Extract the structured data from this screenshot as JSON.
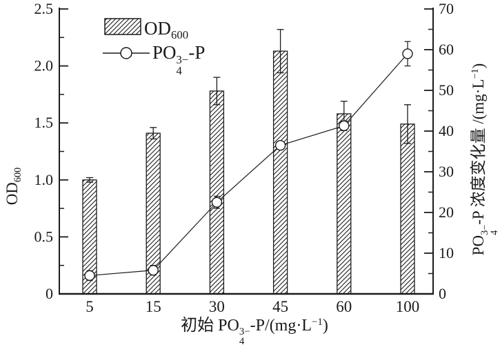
{
  "style": {
    "ink": "#1a1a1a",
    "background": "#ffffff"
  },
  "legend": {
    "entries": [
      {
        "plain": "OD600",
        "swatch": "hatched-bar",
        "parts": [
          {
            "t": "OD"
          },
          {
            "t": "600",
            "style": "sub"
          }
        ]
      },
      {
        "plain": "PO4(3-)-P",
        "swatch": "line-circle-marker",
        "parts": [
          {
            "t": "PO"
          },
          {
            "style": "stack",
            "sup": "3−",
            "sub": "4"
          },
          {
            "t": "-P"
          }
        ]
      }
    ]
  },
  "axes": {
    "left": {
      "title_plain": "OD600",
      "title_parts": [
        {
          "t": "OD"
        },
        {
          "t": "600",
          "style": "sub"
        }
      ],
      "tick_labels": [
        "0",
        "0.5",
        "1.0",
        "1.5",
        "2.0",
        "2.5"
      ]
    },
    "right": {
      "title_plain": "PO4(3-)-P 浓度变化量 /(mg·L-1)",
      "title_parts": [
        {
          "t": "PO"
        },
        {
          "style": "stack",
          "sup": "3−",
          "sub": "4"
        },
        {
          "t": "-P 浓度变化量 /(mg·L"
        },
        {
          "t": "−1",
          "style": "sup"
        },
        {
          "t": ")"
        }
      ],
      "tick_labels": [
        "0",
        "10",
        "20",
        "30",
        "40",
        "50",
        "60",
        "70"
      ]
    },
    "x": {
      "title_plain": "初始 PO4(3-)-P/(mg·L-1)",
      "title_parts": [
        {
          "t": "初始 PO"
        },
        {
          "style": "stack",
          "sup": "3−",
          "sub": "4"
        },
        {
          "t": "-P/(mg·L"
        },
        {
          "t": "−1",
          "style": "sup"
        },
        {
          "t": ")"
        }
      ],
      "tick_labels": [
        "5",
        "15",
        "30",
        "45",
        "60",
        "100"
      ]
    }
  },
  "chart_data": {
    "type": "bar",
    "subtype": "bar+line dual-axis",
    "categories": [
      "5",
      "15",
      "30",
      "45",
      "60",
      "100"
    ],
    "series": [
      {
        "name": "OD600",
        "type": "bar",
        "axis": "left",
        "values": [
          1.0,
          1.41,
          1.78,
          2.13,
          1.58,
          1.49
        ],
        "errors": [
          0.02,
          0.05,
          0.12,
          0.19,
          0.11,
          0.17
        ]
      },
      {
        "name": "PO4(3-)-P",
        "type": "line",
        "axis": "right",
        "values": [
          4.5,
          5.8,
          22.5,
          36.5,
          41.3,
          59.0
        ],
        "errors": [
          1.2,
          1.2,
          1.5,
          0.8,
          1.2,
          3.0
        ]
      }
    ],
    "title": "",
    "xlabel": "初始 PO4(3-)-P/(mg·L-1)",
    "ylabel_left": "OD600",
    "ylabel_right": "PO4(3-)-P 浓度变化量 /(mg·L-1)",
    "left_axis": {
      "min": 0,
      "max": 2.5,
      "major_tick_values": [
        0,
        0.5,
        1.0,
        1.5,
        2.0,
        2.5
      ],
      "minor_step": 0.25
    },
    "right_axis": {
      "min": 0,
      "max": 70,
      "major_tick_values": [
        0,
        10,
        20,
        30,
        40,
        50,
        60,
        70
      ],
      "minor_step": 5
    },
    "grid": false,
    "legend_position": "top-left-inside"
  }
}
